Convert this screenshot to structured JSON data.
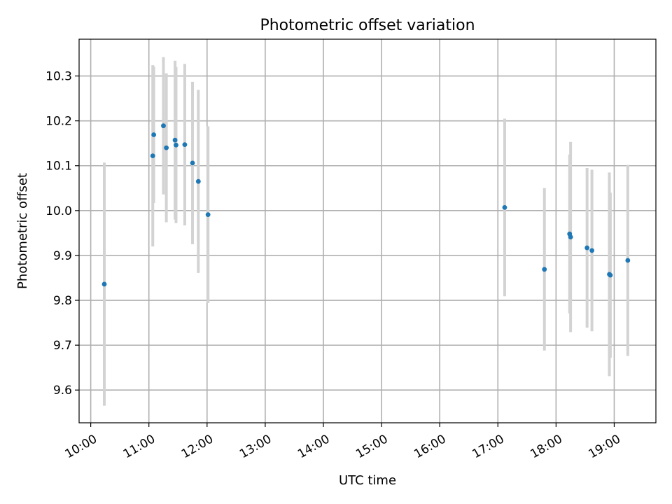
{
  "chart_data": {
    "type": "scatter",
    "title": "Photometric offset variation",
    "xlabel": "UTC time",
    "ylabel": "Photometric offset",
    "xlim": [
      "09:48",
      "19:43"
    ],
    "ylim": [
      9.527,
      10.382
    ],
    "xticks": [
      "10:00",
      "11:00",
      "12:00",
      "13:00",
      "14:00",
      "15:00",
      "16:00",
      "17:00",
      "18:00",
      "19:00"
    ],
    "yticks": [
      9.6,
      9.7,
      9.8,
      9.9,
      10.0,
      10.1,
      10.2,
      10.3
    ],
    "grid": true,
    "colors": {
      "point": "#1f77b4",
      "errorbar": "#d3d3d3"
    },
    "points": [
      {
        "t": "10:14",
        "y": 9.836,
        "yerr": 0.271
      },
      {
        "t": "11:04",
        "y": 10.122,
        "yerr": 0.202
      },
      {
        "t": "11:05",
        "y": 10.169,
        "yerr": 0.152
      },
      {
        "t": "11:15",
        "y": 10.189,
        "yerr": 0.153
      },
      {
        "t": "11:18",
        "y": 10.14,
        "yerr": 0.166
      },
      {
        "t": "11:27",
        "y": 10.157,
        "yerr": 0.177
      },
      {
        "t": "11:28",
        "y": 10.146,
        "yerr": 0.174
      },
      {
        "t": "11:37",
        "y": 10.147,
        "yerr": 0.18
      },
      {
        "t": "11:45",
        "y": 10.106,
        "yerr": 0.181
      },
      {
        "t": "11:51",
        "y": 10.065,
        "yerr": 0.204
      },
      {
        "t": "12:01",
        "y": 9.991,
        "yerr": 0.197
      },
      {
        "t": "17:07",
        "y": 10.007,
        "yerr": 0.198
      },
      {
        "t": "17:48",
        "y": 9.869,
        "yerr": 0.181
      },
      {
        "t": "18:14",
        "y": 9.948,
        "yerr": 0.177
      },
      {
        "t": "18:15",
        "y": 9.941,
        "yerr": 0.212
      },
      {
        "t": "18:32",
        "y": 9.917,
        "yerr": 0.178
      },
      {
        "t": "18:37",
        "y": 9.911,
        "yerr": 0.18
      },
      {
        "t": "18:55",
        "y": 9.858,
        "yerr": 0.227
      },
      {
        "t": "18:56",
        "y": 9.856,
        "yerr": 0.184
      },
      {
        "t": "19:14",
        "y": 9.889,
        "yerr": 0.213
      }
    ]
  }
}
